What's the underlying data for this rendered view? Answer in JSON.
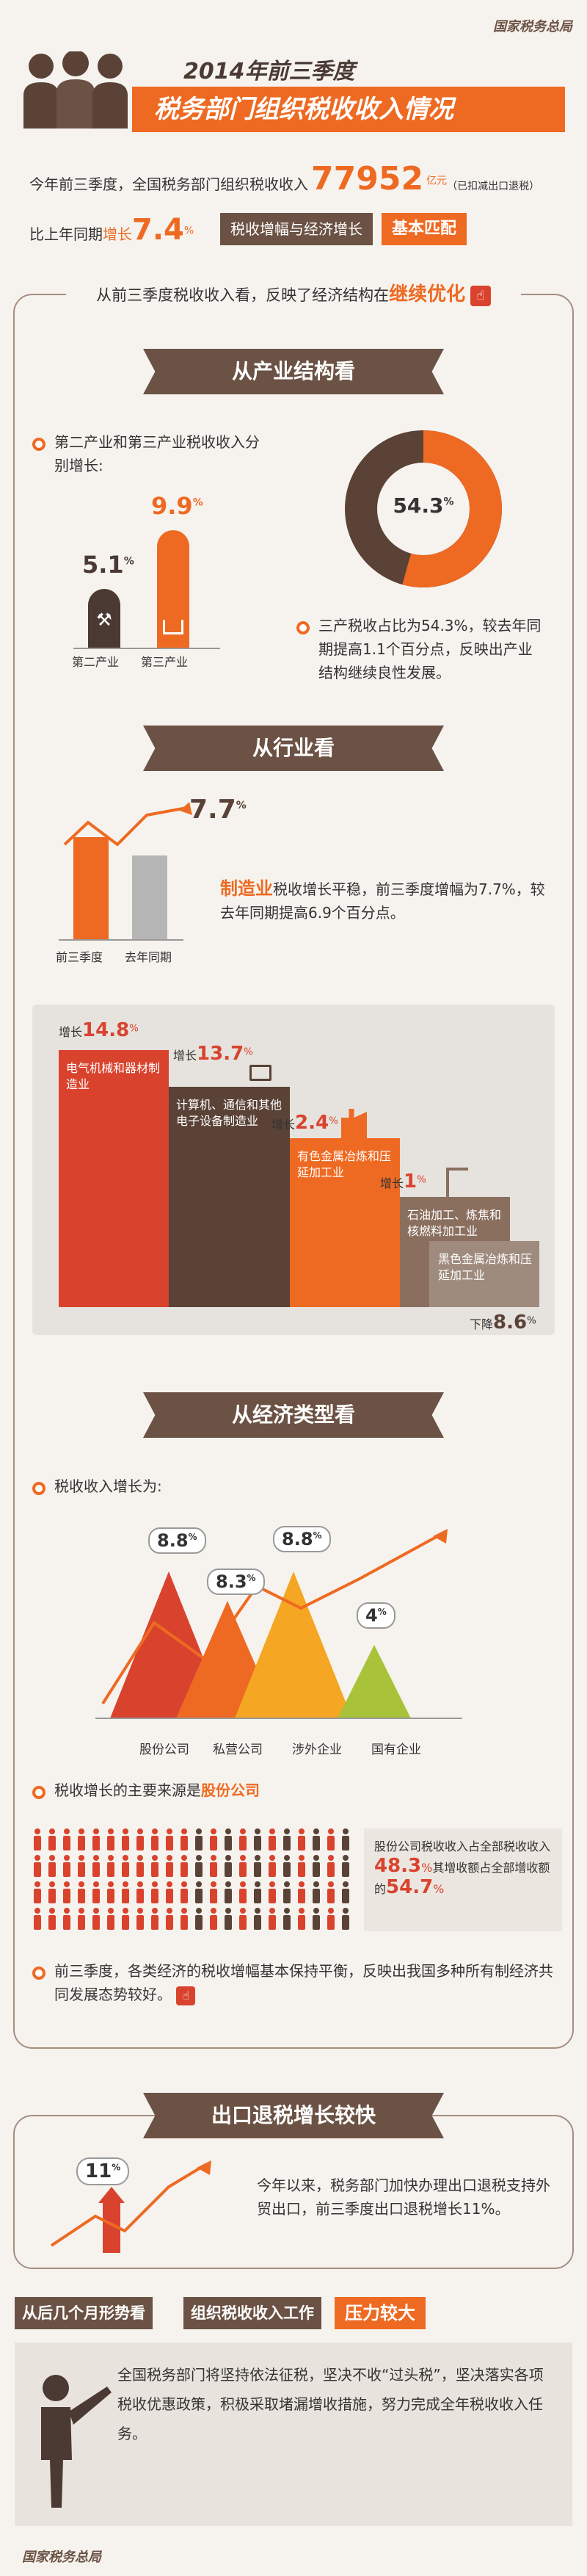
{
  "brand": "国家税务总局",
  "header": {
    "title_year": "2014年前三季度",
    "title_main": "税务部门组织税收收入情况",
    "line1_prefix": "今年前三季度，全国税务部门组织税收收入",
    "line1_value": "77952",
    "line1_unit": "亿元",
    "line1_note": "（已扣减出口退税）",
    "line2_prefix": "比上年同期",
    "line2_growth_label": "增长",
    "line2_growth_value": "7.4",
    "line2_growth_unit": "%",
    "line2_badge_a": "税收增幅与经济增长",
    "line2_badge_b": "基本匹配"
  },
  "intro": {
    "text": "从前三季度税收收入看，反映了经济结构在",
    "highlight": "继续优化"
  },
  "industry_structure": {
    "heading": "从产业结构看",
    "bullet_text": "第二产业和第三产业税收收入分别增长:",
    "bars": [
      {
        "label": "第二产业",
        "value": "5.1",
        "unit": "%",
        "icon": "tools-icon",
        "color": "#4a3a33"
      },
      {
        "label": "第三产业",
        "value": "9.9",
        "unit": "%",
        "icon": "shopping-basket-icon",
        "color": "#ee6a22"
      }
    ],
    "donut_value": "54.3",
    "donut_unit": "%",
    "donut_fraction": 0.543,
    "donut_text": "三产税收占比为54.3%，较去年同期提高1.1个百分点，反映出产业结构继续良性发展。"
  },
  "sector": {
    "heading": "从行业看",
    "bars": [
      {
        "label": "前三季度",
        "color": "#ee6a22"
      },
      {
        "label": "去年同期",
        "color": "#b5b5b5"
      }
    ],
    "value": "7.7",
    "unit": "%",
    "text_highlight": "制造业",
    "text": "税收增长平稳，前三季度增幅为7.7%，较去年同期提高6.9个百分点。",
    "industries": [
      {
        "name": "电气机械和器材制造业",
        "prefix": "增长",
        "value": "14.8",
        "unit": "%",
        "color": "#d9432e"
      },
      {
        "name": "计算机、通信和其他电子设备制造业",
        "prefix": "增长",
        "value": "13.7",
        "unit": "%",
        "color": "#5a4236"
      },
      {
        "name": "有色金属冶炼和压延加工业",
        "prefix": "增长",
        "value": "2.4",
        "unit": "%",
        "color": "#ee6a22"
      },
      {
        "name": "石油加工、炼焦和核燃料加工业",
        "prefix": "增长",
        "value": "1",
        "unit": "%",
        "color": "#8a6e5e"
      },
      {
        "name": "黑色金属冶炼和压延加工业",
        "prefix": "下降",
        "value": "8.6",
        "unit": "%",
        "color": "#9f8b7e"
      }
    ]
  },
  "economic_type": {
    "heading": "从经济类型看",
    "bullet_text": "税收收入增长为:",
    "peaks": [
      {
        "label": "股份公司",
        "value": "8.8",
        "unit": "%",
        "color": "#d9432e"
      },
      {
        "label": "私营公司",
        "value": "8.3",
        "unit": "%",
        "color": "#ee6a22"
      },
      {
        "label": "涉外企业",
        "value": "8.8",
        "unit": "%",
        "color": "#f5a623"
      },
      {
        "label": "国有企业",
        "value": "4",
        "unit": "%",
        "color": "#a8c23a"
      }
    ],
    "source_prefix": "税收增长的主要来源是",
    "source_highlight": "股份公司",
    "share_text_a": "股份公司税收收入占全部税收收入",
    "share_value_a": "48.3",
    "share_unit": "%",
    "share_text_b": "其增收额占全部增收额的",
    "share_value_b": "54.7",
    "summary": "前三季度，各类经济的税收增幅基本保持平衡，反映出我国多种所有制经济共同发展态势较好。"
  },
  "export": {
    "heading": "出口退税增长较快",
    "value": "11",
    "unit": "%",
    "text": "今年以来，税务部门加快办理出口退税支持外贸出口，前三季度出口退税增长11%。"
  },
  "outlook": {
    "label_a": "从后几个月形势看",
    "label_b": "组织税收收入工作",
    "label_c": "压力较大",
    "text": "全国税务部门将坚持依法征税，坚决不收“过头税”，坚决落实各项税收优惠政策，积极采取堵漏增收措施，努力完成全年税收收入任务。"
  },
  "footer": {
    "brand": "国家税务总局"
  }
}
